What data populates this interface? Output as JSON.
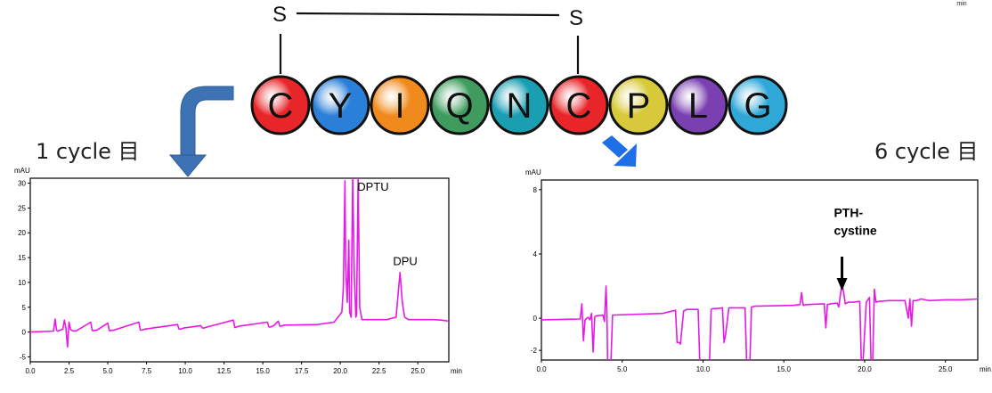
{
  "peptide": {
    "sulfur_left": "S",
    "sulfur_right": "S",
    "residues": [
      {
        "letter": "C",
        "color": "#e8262a"
      },
      {
        "letter": "Y",
        "color": "#2a7fd8"
      },
      {
        "letter": "I",
        "color": "#f08a1c"
      },
      {
        "letter": "Q",
        "color": "#3f9c5e"
      },
      {
        "letter": "N",
        "color": "#1a9fb2"
      },
      {
        "letter": "C",
        "color": "#e8262a"
      },
      {
        "letter": "P",
        "color": "#d8c93a"
      },
      {
        "letter": "L",
        "color": "#7a3fb0"
      },
      {
        "letter": "G",
        "color": "#2fa8d8"
      }
    ]
  },
  "labels": {
    "left_cycle": "1 cycle 目",
    "right_cycle": "6 cycle 目",
    "corner_min": "min"
  },
  "arrows": {
    "left_color": "#3d72b4",
    "right_color": "#1e6fe6"
  },
  "chart_data": [
    {
      "type": "line",
      "title": "",
      "yunit": "mAU",
      "xunit": "min",
      "xlim": [
        0,
        27
      ],
      "ylim": [
        -6,
        31
      ],
      "xticks": [
        "0.0",
        "2.5",
        "5.0",
        "7.5",
        "10.0",
        "12.5",
        "15.0",
        "17.5",
        "20.0",
        "22.5",
        "25.0"
      ],
      "xtick_values": [
        0,
        2.5,
        5,
        7.5,
        10,
        12.5,
        15,
        17.5,
        20,
        22.5,
        25
      ],
      "yticks": [
        "-5",
        "0",
        "5",
        "10",
        "15",
        "20",
        "25",
        "30"
      ],
      "ytick_values": [
        -5,
        0,
        5,
        10,
        15,
        20,
        25,
        30
      ],
      "line_color": "#e619e6",
      "annotations": [
        {
          "text": "DPTU",
          "x": 21.1,
          "y": 28.5
        },
        {
          "text": "DPU",
          "x": 23.4,
          "y": 13.5
        }
      ],
      "series": [
        {
          "x": [
            0,
            1.5,
            1.6,
            1.7,
            1.8,
            2.1,
            2.2,
            2.3,
            2.4,
            2.5,
            2.6,
            2.7,
            2.8,
            3.0,
            3.9,
            4.0,
            4.1,
            4.3,
            5.0,
            5.1,
            5.2,
            5.4,
            7.0,
            7.1,
            7.2,
            7.4,
            9.5,
            9.6,
            9.7,
            9.9,
            11.0,
            11.1,
            11.2,
            11.4,
            13.1,
            13.2,
            13.3,
            13.5,
            15.3,
            15.4,
            15.5,
            15.7,
            16.0,
            16.1,
            16.2,
            16.4,
            18.5,
            19.6,
            20.1,
            20.2,
            20.3,
            20.35,
            20.45,
            20.55,
            20.6,
            20.7,
            20.8,
            20.9,
            21.0,
            21.05,
            21.15,
            21.25,
            21.4,
            23.0,
            23.6,
            23.85,
            24.0,
            24.15,
            24.4,
            25.5,
            26.0,
            26.5,
            27.0
          ],
          "y": [
            0,
            0.2,
            2.6,
            0.3,
            0.2,
            0.6,
            2.4,
            0.8,
            -3.0,
            2.0,
            0.5,
            0.3,
            0.2,
            0.3,
            2.0,
            0.3,
            0.3,
            0.4,
            1.8,
            0.3,
            0.3,
            0.4,
            2.0,
            0.4,
            0.4,
            0.6,
            1.5,
            0.6,
            0.6,
            0.8,
            1.3,
            0.8,
            0.8,
            1.0,
            2.4,
            0.9,
            1.0,
            1.2,
            2.0,
            1.0,
            1.0,
            1.3,
            2.2,
            1.2,
            1.2,
            1.4,
            1.5,
            2.0,
            4.0,
            9.0,
            30.5,
            13.0,
            6.0,
            18.5,
            4.0,
            3.0,
            31.5,
            12.0,
            3.0,
            3.5,
            31.5,
            5.0,
            2.5,
            2.5,
            3.0,
            12.0,
            6.0,
            3.0,
            2.5,
            2.5,
            2.5,
            2.4,
            2.2
          ]
        }
      ]
    },
    {
      "type": "line",
      "title": "",
      "yunit": "mAU",
      "xunit": "min",
      "xlim": [
        0,
        27
      ],
      "ylim": [
        -2.6,
        8.6
      ],
      "xticks": [
        "0.0",
        "5.0",
        "10.0",
        "15.0",
        "20.0",
        "25.0"
      ],
      "xtick_values": [
        0,
        5,
        10,
        15,
        20,
        25
      ],
      "yticks": [
        "-2",
        "0",
        "4",
        "8"
      ],
      "ytick_values": [
        -2,
        0,
        4,
        8
      ],
      "line_color": "#e619e6",
      "annotations": [
        {
          "text": "PTH-",
          "x": 18.1,
          "y": 6.3
        },
        {
          "text": "cystine",
          "x": 18.1,
          "y": 5.2
        }
      ],
      "marker_arrow_x": 18.6,
      "series": [
        {
          "x": [
            0,
            2.4,
            2.5,
            2.6,
            2.7,
            2.8,
            2.9,
            3.0,
            3.1,
            3.2,
            3.3,
            3.4,
            3.8,
            3.9,
            4.0,
            4.05,
            4.1,
            4.2,
            4.3,
            4.4,
            4.5,
            7.5,
            8.3,
            8.4,
            8.5,
            8.6,
            8.8,
            9.0,
            9.7,
            9.8,
            9.9,
            10.4,
            10.5,
            10.6,
            10.8,
            11.2,
            11.3,
            11.4,
            11.6,
            12.6,
            12.7,
            12.8,
            12.9,
            13.0,
            13.2,
            15.5,
            16.0,
            16.1,
            16.2,
            16.4,
            17.5,
            17.6,
            17.7,
            17.9,
            18.3,
            18.4,
            18.6,
            18.7,
            18.8,
            18.9,
            19.0,
            19.3,
            19.7,
            19.8,
            19.9,
            20.1,
            20.3,
            20.4,
            20.5,
            20.6,
            20.7,
            20.9,
            21.5,
            22.0,
            22.5,
            22.7,
            22.8,
            22.9,
            23.0,
            23.2,
            23.5,
            24.0,
            25.0,
            26.0,
            27.0
          ],
          "y": [
            -0.1,
            -0.05,
            0.9,
            -1.4,
            -0.1,
            0,
            0.05,
            -0.1,
            0.3,
            -2.1,
            0.1,
            0.15,
            0.2,
            -0.2,
            2.0,
            0.5,
            -2.8,
            -2.8,
            -2.8,
            0.2,
            0.2,
            0.3,
            0.5,
            -1.5,
            -1.5,
            -1.6,
            0.45,
            0.55,
            0.55,
            -2.8,
            -2.8,
            -2.8,
            0.55,
            0.6,
            0.6,
            0.65,
            -1.5,
            -1.0,
            0.65,
            0.65,
            -2.8,
            -2.8,
            -2.8,
            0.7,
            0.75,
            0.8,
            0.85,
            1.6,
            0.8,
            0.85,
            0.9,
            -0.6,
            0.85,
            0.9,
            0.95,
            0.7,
            2.2,
            1.6,
            0.9,
            0.95,
            1.0,
            1.0,
            1.05,
            -2.8,
            -2.8,
            1.0,
            1.3,
            -2.8,
            -2.8,
            1.8,
            1.0,
            1.05,
            1.1,
            1.1,
            1.1,
            0.0,
            1.2,
            -0.5,
            1.1,
            1.1,
            1.2,
            1.1,
            1.15,
            1.15,
            1.2
          ]
        }
      ]
    }
  ]
}
